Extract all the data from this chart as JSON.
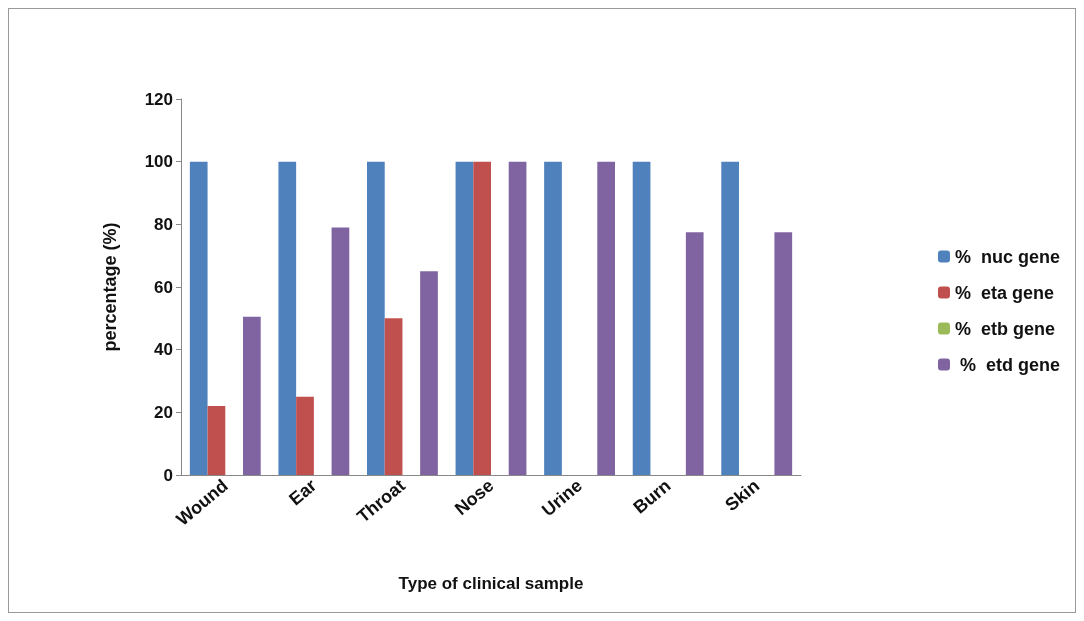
{
  "chart_data": {
    "type": "bar",
    "xlabel": "Type of clinical sample",
    "ylabel": "percentage (%)",
    "categories": [
      "Wound",
      "Ear",
      "Throat",
      "Nose",
      "Urine",
      "Burn",
      "Skin"
    ],
    "series": [
      {
        "name": "%  nuc gene",
        "color": "#4f81bd",
        "values": [
          100,
          100,
          100,
          100,
          100,
          100,
          100
        ]
      },
      {
        "name": "%  eta gene",
        "color": "#c0504d",
        "values": [
          22,
          25,
          50,
          100,
          0,
          0,
          0
        ]
      },
      {
        "name": "%  etb gene",
        "color": "#9bbb59",
        "values": [
          0,
          0,
          0,
          0,
          0,
          0,
          0
        ]
      },
      {
        "name": " %  etd gene",
        "color": "#8064a2",
        "values": [
          50.5,
          79,
          65,
          100,
          100,
          77.5,
          77.5
        ]
      }
    ],
    "ylim": [
      0,
      120
    ],
    "yticks": [
      0,
      20,
      40,
      60,
      80,
      100,
      120
    ],
    "grid": false,
    "legend": "right"
  }
}
